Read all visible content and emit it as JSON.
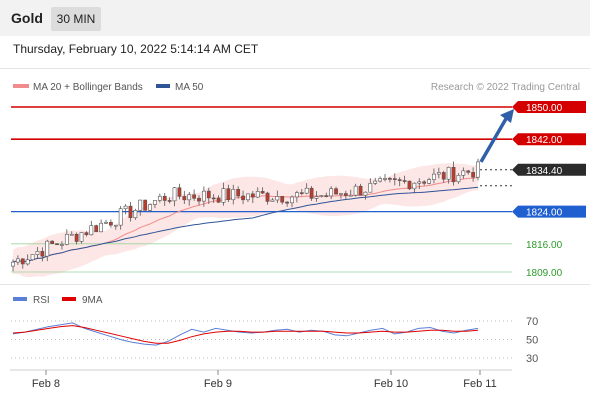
{
  "header": {
    "title": "Gold",
    "timeframe": "30 MIN"
  },
  "datetime": "Thursday, February 10, 2022 5:14:14 AM CET",
  "legend": {
    "items": [
      {
        "label": "MA 20 + Bollinger Bands",
        "color": "#f28b8b"
      },
      {
        "label": "MA 50",
        "color": "#2f5597"
      }
    ],
    "copyright": "Research © 2022 Trading Central"
  },
  "rsi_legend": {
    "items": [
      {
        "label": "RSI",
        "color": "#5a7fd6"
      },
      {
        "label": "9MA",
        "color": "#e00000"
      }
    ]
  },
  "colors": {
    "resistance": "#d40000",
    "support": "#1f5fd0",
    "target": "#2a9a2a",
    "current": "#2b2b2b",
    "arrow": "#2f5fa8"
  },
  "chart_data": [
    {
      "type": "line",
      "series": [
        {
          "name": "Gold",
          "x": [
            "Feb 8",
            "Feb 9",
            "Feb 10",
            "Feb 11"
          ],
          "values": [
            1811.5,
            1828,
            1828,
            1834.4
          ]
        }
      ],
      "y_levels": [
        {
          "value": "1850.00",
          "kind": "resistance"
        },
        {
          "value": "1842.00",
          "kind": "resistance"
        },
        {
          "value": "1834.40",
          "kind": "current"
        },
        {
          "value": "1824.00",
          "kind": "support"
        },
        {
          "value": "1816.00",
          "kind": "target"
        },
        {
          "value": "1809.00",
          "kind": "target"
        }
      ],
      "x_ticks": [
        "Feb 8",
        "Feb 9",
        "Feb 10",
        "Feb 11"
      ],
      "ylim": [
        1807,
        1852
      ],
      "forecast": {
        "to": 1850
      }
    },
    {
      "type": "line",
      "series": [
        {
          "name": "RSI",
          "values": [
            56,
            58,
            61,
            64,
            66,
            68,
            62,
            58,
            54,
            50,
            47,
            45,
            44,
            48,
            55,
            61,
            58,
            62,
            60,
            58,
            57,
            58,
            60,
            61,
            58,
            60,
            59,
            55,
            54,
            57,
            60,
            62,
            56,
            58,
            62,
            63,
            59,
            57,
            60,
            62
          ]
        },
        {
          "name": "9MA",
          "values": [
            57,
            58,
            60,
            62,
            64,
            65,
            63,
            60,
            57,
            54,
            51,
            48,
            46,
            46,
            49,
            53,
            56,
            58,
            59,
            59,
            58,
            58,
            59,
            59,
            59,
            59,
            59,
            58,
            57,
            57,
            58,
            59,
            58,
            58,
            59,
            60,
            60,
            59,
            59,
            60
          ]
        }
      ],
      "y_ticks": [
        "70",
        "50",
        "30"
      ],
      "ylim": [
        20,
        80
      ]
    }
  ]
}
